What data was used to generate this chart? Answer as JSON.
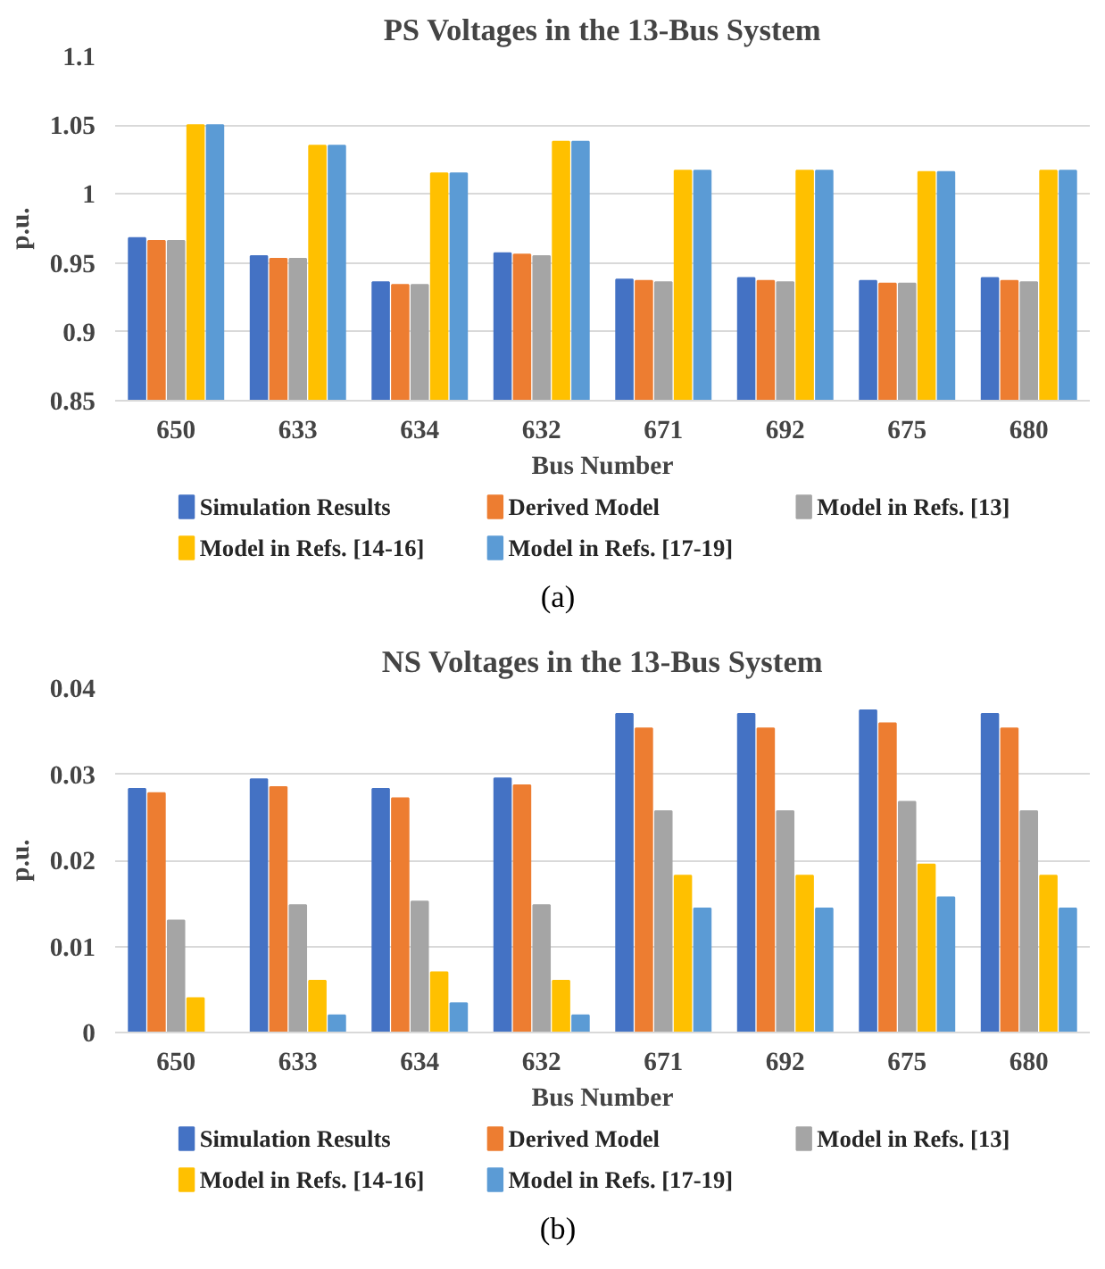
{
  "chart_data": [
    {
      "type": "bar",
      "title": "PS Voltages in the 13-Bus System",
      "xlabel": "Bus Number",
      "ylabel": "p.u.",
      "categories": [
        "650",
        "633",
        "634",
        "632",
        "671",
        "692",
        "675",
        "680"
      ],
      "series": [
        {
          "name": "Simulation Results",
          "color": "#4472c4",
          "values": [
            0.968,
            0.955,
            0.936,
            0.957,
            0.938,
            0.939,
            0.937,
            0.939
          ]
        },
        {
          "name": "Derived Model",
          "color": "#ed7d31",
          "values": [
            0.966,
            0.953,
            0.934,
            0.956,
            0.937,
            0.937,
            0.935,
            0.937
          ]
        },
        {
          "name": "Model in Refs. [13]",
          "color": "#a5a5a5",
          "values": [
            0.966,
            0.953,
            0.934,
            0.955,
            0.936,
            0.936,
            0.935,
            0.936
          ]
        },
        {
          "name": "Model in Refs. [14-16]",
          "color": "#ffc000",
          "values": [
            1.05,
            1.035,
            1.015,
            1.038,
            1.017,
            1.017,
            1.016,
            1.017
          ]
        },
        {
          "name": "Model in Refs. [17-19]",
          "color": "#5b9bd5",
          "values": [
            1.05,
            1.035,
            1.015,
            1.038,
            1.017,
            1.017,
            1.016,
            1.017
          ]
        }
      ],
      "ylim": [
        0.85,
        1.1
      ],
      "yticks": [
        0.85,
        0.9,
        0.95,
        1,
        1.05,
        1.1
      ],
      "grid": "y",
      "legend": "bottom",
      "annotations": [
        "(a)"
      ]
    },
    {
      "type": "bar",
      "title": "NS Voltages in the 13-Bus System",
      "xlabel": "Bus Number",
      "ylabel": "p.u.",
      "categories": [
        "650",
        "633",
        "634",
        "632",
        "671",
        "692",
        "675",
        "680"
      ],
      "series": [
        {
          "name": "Simulation Results",
          "color": "#4472c4",
          "values": [
            0.0283,
            0.0294,
            0.0283,
            0.0295,
            0.037,
            0.037,
            0.0374,
            0.037
          ]
        },
        {
          "name": "Derived Model",
          "color": "#ed7d31",
          "values": [
            0.0278,
            0.0285,
            0.0272,
            0.0287,
            0.0353,
            0.0353,
            0.0359,
            0.0353
          ]
        },
        {
          "name": "Model in Refs. [13]",
          "color": "#a5a5a5",
          "values": [
            0.013,
            0.0148,
            0.0152,
            0.0148,
            0.0257,
            0.0257,
            0.0268,
            0.0257
          ]
        },
        {
          "name": "Model in Refs. [14-16]",
          "color": "#ffc000",
          "values": [
            0.004,
            0.006,
            0.007,
            0.006,
            0.0182,
            0.0182,
            0.0195,
            0.0182
          ]
        },
        {
          "name": "Model in Refs. [17-19]",
          "color": "#5b9bd5",
          "values": [
            0,
            0.002,
            0.0034,
            0.002,
            0.0144,
            0.0144,
            0.0157,
            0.0144
          ]
        }
      ],
      "ylim": [
        0,
        0.04
      ],
      "yticks": [
        0,
        0.01,
        0.02,
        0.03,
        0.04
      ],
      "grid": "y",
      "legend": "bottom",
      "annotations": [
        "(b)"
      ]
    }
  ]
}
